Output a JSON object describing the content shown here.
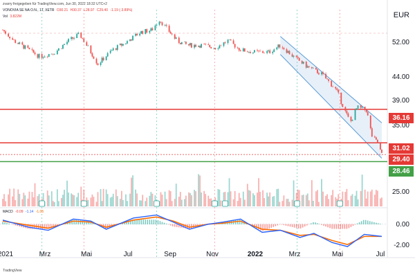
{
  "header": {
    "credit": "zvarry freigegeben für TradingView.com, Jun 30, 2022 18:32 UTC+2",
    "symbol": "VONOVIA SE NA O.N., 1T, XETR",
    "ohlc": [
      "O30.21",
      "H30.37",
      "L28.97",
      "C29.40",
      "-1.19 (-3.89%)"
    ],
    "vol_label": "Vol",
    "vol_value": "3.822M"
  },
  "macd_legend": {
    "label": "MACD",
    "values": [
      "-0.09",
      "-1.14",
      "-1.05"
    ]
  },
  "currency": "EUR",
  "footer": "TradingView",
  "colors": {
    "up": "#26a69a",
    "down": "#ef5350",
    "hline_red": "#e53935",
    "hline_green": "#43a047",
    "channel": "#5b9bd5",
    "macd": "#2962ff",
    "signal": "#ff6d00"
  },
  "chart_data": [
    {
      "type": "line",
      "subtype": "candlestick",
      "y_axis_ticks": [
        "52.00",
        "44.00",
        "39.00",
        "35.00",
        "25.00"
      ],
      "ylim": [
        27,
        56
      ],
      "log_scale": true,
      "x_tick_labels": [
        "2021",
        "Mrz",
        "Mai",
        "Jul",
        "Sep",
        "Nov",
        "2022",
        "Mrz",
        "Mai",
        "Jul"
      ],
      "horizontal_levels": [
        {
          "value": 36.16,
          "label": "36.16",
          "color": "red"
        },
        {
          "value": 31.02,
          "label": "31.02",
          "color": "red"
        },
        {
          "value": 29.4,
          "label": "29.40",
          "color": "red"
        },
        {
          "value": 28.46,
          "label": "28.46",
          "color": "green"
        }
      ],
      "close_path": [
        [
          "2021-01-04",
          52.0
        ],
        [
          "2021-01-20",
          49.5
        ],
        [
          "2021-02-10",
          47.5
        ],
        [
          "2021-02-26",
          46.0
        ],
        [
          "2021-03-20",
          47.0
        ],
        [
          "2021-04-08",
          49.5
        ],
        [
          "2021-04-24",
          51.0
        ],
        [
          "2021-05-10",
          47.0
        ],
        [
          "2021-05-20",
          44.5
        ],
        [
          "2021-06-10",
          47.5
        ],
        [
          "2021-06-28",
          49.0
        ],
        [
          "2021-07-20",
          51.5
        ],
        [
          "2021-08-05",
          52.0
        ],
        [
          "2021-08-16",
          54.5
        ],
        [
          "2021-08-26",
          52.5
        ],
        [
          "2021-09-10",
          49.5
        ],
        [
          "2021-09-25",
          48.5
        ],
        [
          "2021-10-15",
          48.5
        ],
        [
          "2021-11-05",
          48.0
        ],
        [
          "2021-11-22",
          49.5
        ],
        [
          "2021-12-10",
          47.5
        ],
        [
          "2021-12-28",
          47.0
        ],
        [
          "2022-01-20",
          47.0
        ],
        [
          "2022-02-05",
          48.5
        ],
        [
          "2022-02-24",
          46.0
        ],
        [
          "2022-03-15",
          44.0
        ],
        [
          "2022-04-05",
          42.5
        ],
        [
          "2022-04-26",
          39.5
        ],
        [
          "2022-05-08",
          36.0
        ],
        [
          "2022-05-16",
          34.0
        ],
        [
          "2022-05-26",
          36.5
        ],
        [
          "2022-06-08",
          36.0
        ],
        [
          "2022-06-16",
          32.0
        ],
        [
          "2022-06-24",
          31.0
        ],
        [
          "2022-06-30",
          29.4
        ]
      ],
      "channel": {
        "upper_start": [
          "2022-02-05",
          50.5
        ],
        "upper_end": [
          "2022-06-30",
          34.0
        ],
        "lower_start": [
          "2022-02-05",
          46.5
        ],
        "lower_end": [
          "2022-06-30",
          28.9
        ]
      }
    },
    {
      "type": "bar",
      "subtype": "volume",
      "y_axis_ticks": [
        "25.00"
      ],
      "series": [
        {
          "values": "daily volume bars, green up / red down"
        }
      ]
    },
    {
      "type": "line",
      "subtype": "MACD",
      "y_axis_ticks": [
        "0.00",
        "-2.00"
      ],
      "ylim": [
        -2.6,
        1.2
      ],
      "series": [
        {
          "name": "MACD",
          "values": [
            0.4,
            -0.3,
            -0.6,
            0.5,
            0.3,
            -0.5,
            0.6,
            0.9,
            0.2,
            -0.5,
            0.0,
            0.2,
            0.5,
            -0.8,
            -0.6,
            -1.3,
            -0.9,
            -1.8,
            -2.2,
            -1.0,
            -1.2
          ]
        },
        {
          "name": "Signal",
          "values": [
            0.3,
            -0.1,
            -0.4,
            0.3,
            0.2,
            -0.3,
            0.4,
            0.7,
            0.3,
            -0.3,
            0.0,
            0.1,
            0.3,
            -0.5,
            -0.6,
            -1.1,
            -1.0,
            -1.6,
            -2.0,
            -1.2,
            -1.2
          ]
        }
      ],
      "x": [
        "2021-01-04",
        "2021-02-10",
        "2021-03-10",
        "2021-04-15",
        "2021-05-10",
        "2021-06-01",
        "2021-07-10",
        "2021-08-12",
        "2021-09-05",
        "2021-09-28",
        "2021-10-25",
        "2021-11-15",
        "2021-12-10",
        "2022-01-10",
        "2022-02-05",
        "2022-03-05",
        "2022-03-25",
        "2022-04-20",
        "2022-05-12",
        "2022-06-05",
        "2022-06-30"
      ]
    }
  ]
}
